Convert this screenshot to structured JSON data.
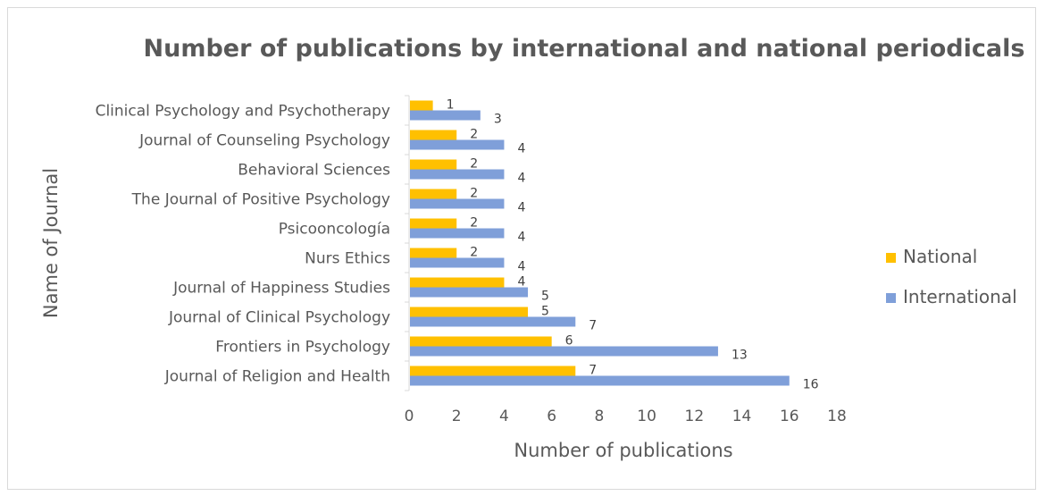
{
  "chart_data": {
    "type": "bar",
    "orientation": "horizontal",
    "title": "Number of publications by international and national periodicals",
    "xlabel": "Number of publications",
    "ylabel": "Name of Journal",
    "xlim": [
      0,
      18
    ],
    "xticks": [
      "0",
      "2",
      "4",
      "6",
      "8",
      "10",
      "12",
      "14",
      "16",
      "18"
    ],
    "grid": false,
    "legend_position": "right",
    "categories": [
      "Clinical Psychology and Psychotherapy",
      "Journal of Counseling Psychology",
      "Behavioral Sciences",
      "The Journal of Positive Psychology",
      "Psicooncología",
      "Nurs Ethics",
      "Journal of Happiness Studies",
      "Journal of Clinical Psychology",
      "Frontiers in Psychology",
      "Journal of Religion and Health"
    ],
    "series": [
      {
        "name": "National",
        "color": "#FFC000",
        "values": [
          1,
          2,
          2,
          2,
          2,
          2,
          4,
          5,
          6,
          7
        ]
      },
      {
        "name": "International",
        "color": "#7F9FD9",
        "values": [
          3,
          4,
          4,
          4,
          4,
          4,
          5,
          7,
          13,
          16
        ]
      }
    ]
  }
}
